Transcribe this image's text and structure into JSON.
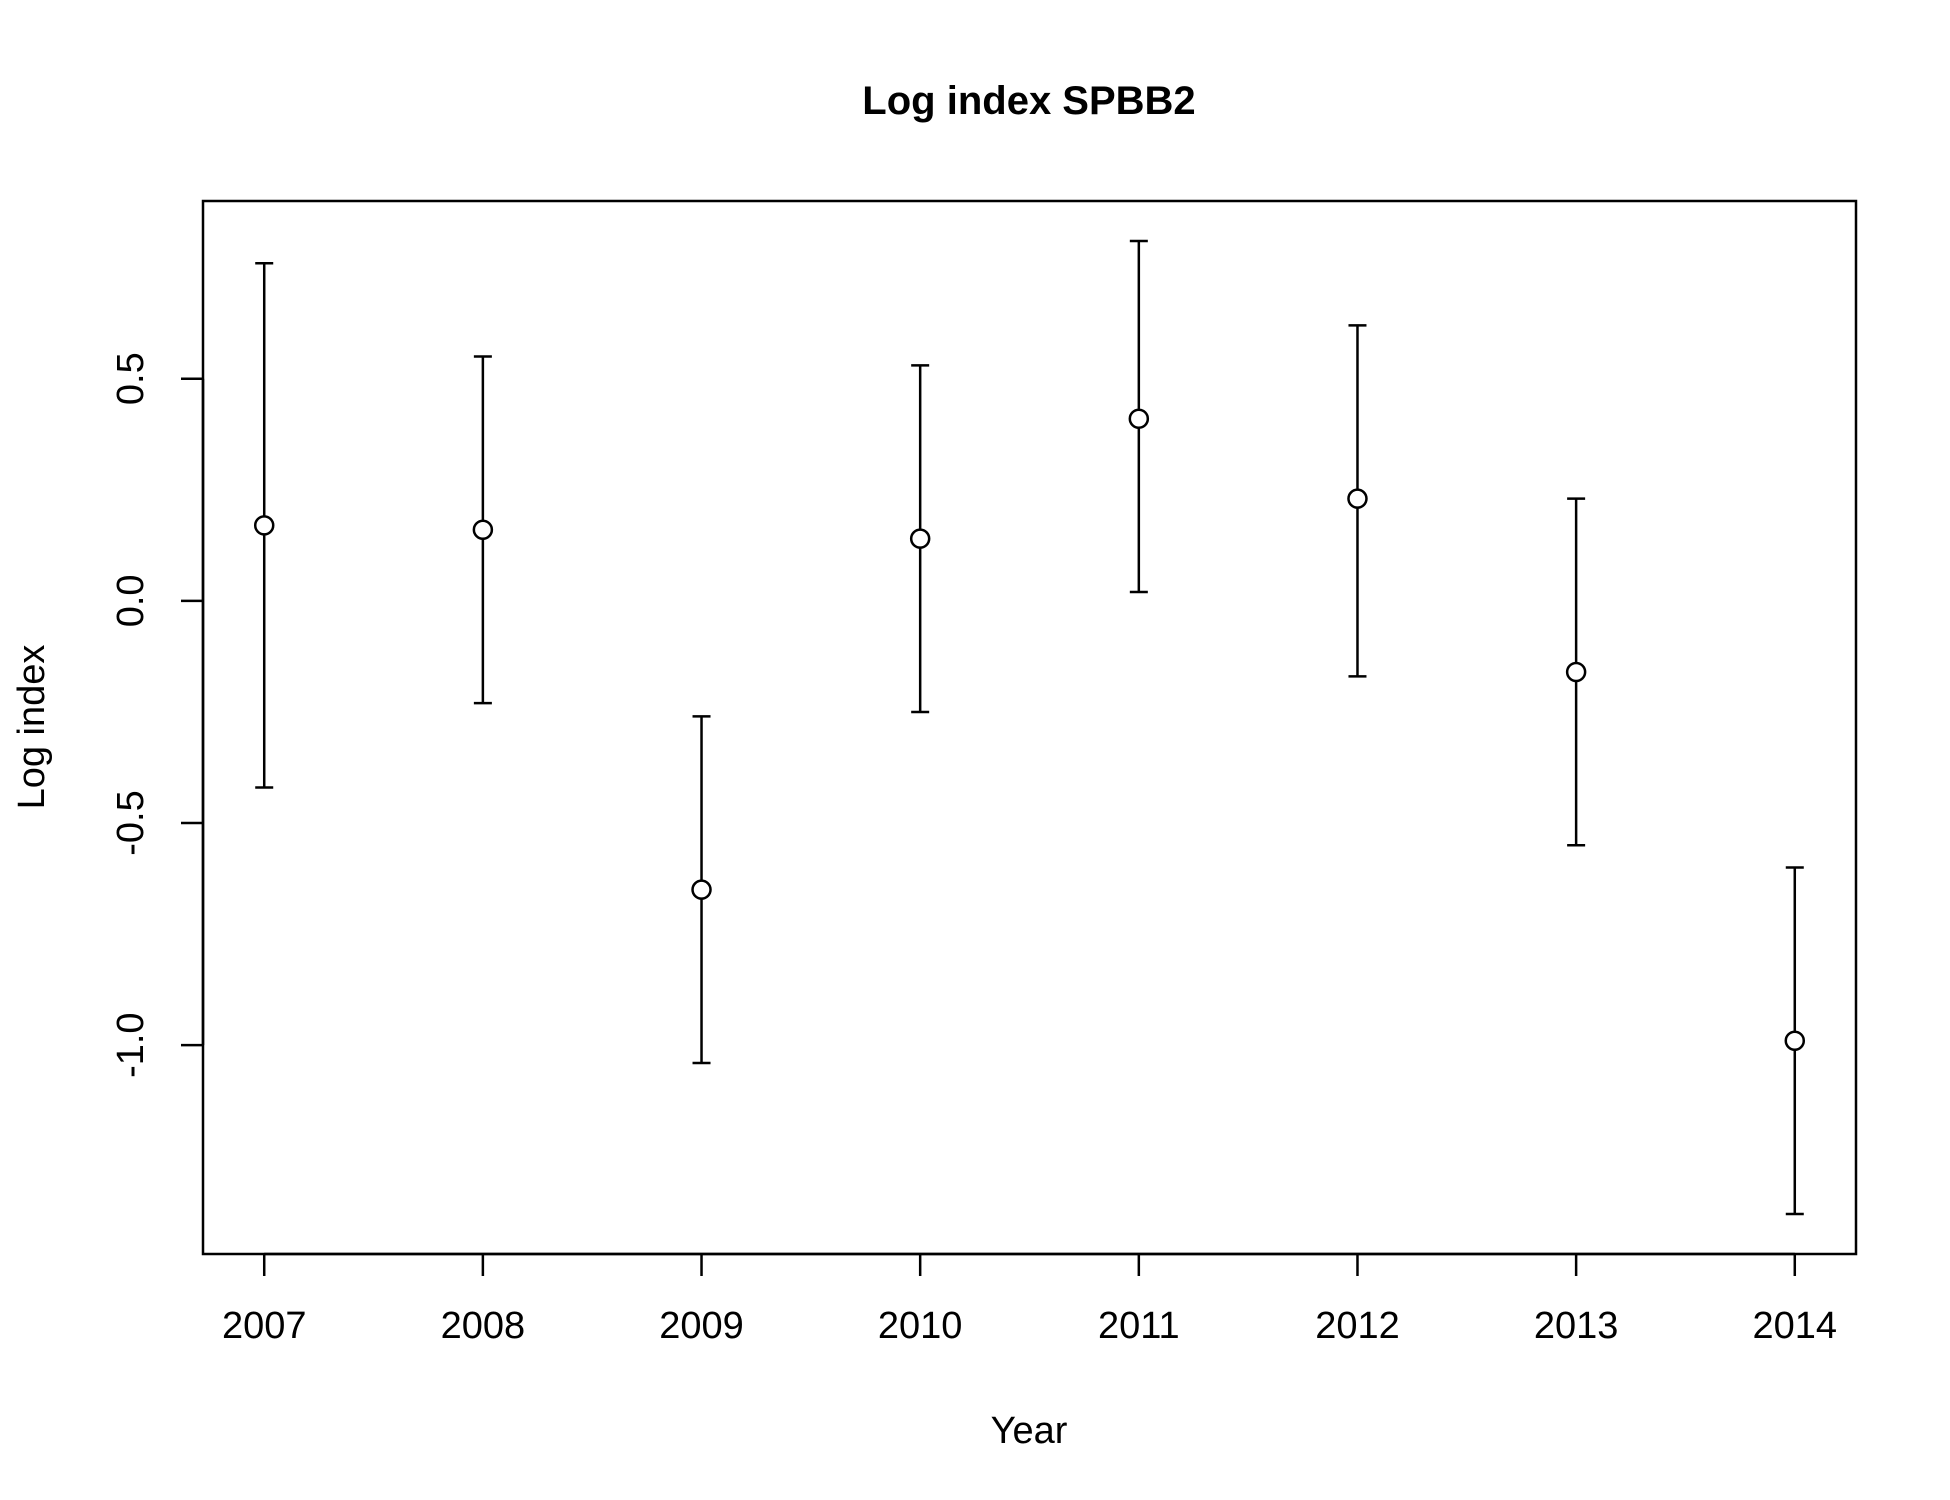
{
  "chart_data": {
    "type": "scatter",
    "title": "Log index SPBB2",
    "xlabel": "Year",
    "ylabel": "Log index",
    "xlim": [
      2006.72,
      2014.28
    ],
    "ylim": [
      -1.47,
      0.9
    ],
    "x_ticks": [
      2007,
      2008,
      2009,
      2010,
      2011,
      2012,
      2013,
      2014
    ],
    "y_ticks": [
      -1.0,
      -0.5,
      0.0,
      0.5
    ],
    "y_tick_labels": [
      "-1.0",
      "-0.5",
      "0.0",
      "0.5"
    ],
    "grid": false,
    "legend": "none",
    "error_bars": true,
    "series": [
      {
        "x": [
          2007,
          2008,
          2009,
          2010,
          2011,
          2012,
          2013,
          2014
        ],
        "y": [
          0.17,
          0.16,
          -0.65,
          0.14,
          0.41,
          0.23,
          -0.16,
          -0.99
        ],
        "lower": [
          -0.42,
          -0.23,
          -1.04,
          -0.25,
          0.02,
          -0.17,
          -0.55,
          -1.38
        ],
        "upper": [
          0.76,
          0.55,
          -0.26,
          0.53,
          0.81,
          0.62,
          0.23,
          -0.6
        ]
      }
    ],
    "colors": {
      "line": "#000000",
      "marker_fill": "#ffffff"
    }
  }
}
